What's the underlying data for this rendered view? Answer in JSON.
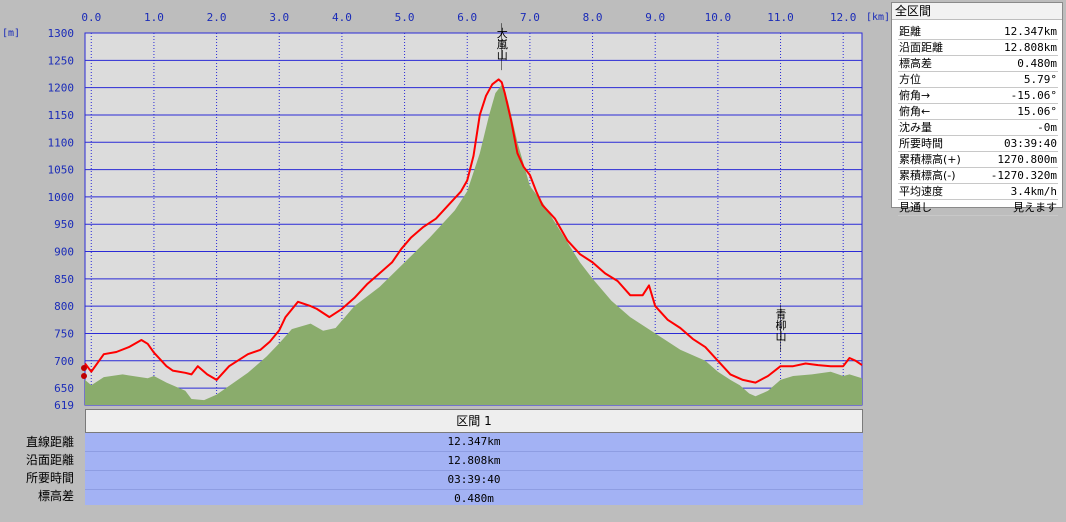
{
  "chart_data": {
    "type": "area",
    "x_unit": "[km]",
    "y_unit": "[m]",
    "x_ticks": [
      0.0,
      1.0,
      2.0,
      3.0,
      4.0,
      5.0,
      6.0,
      7.0,
      8.0,
      9.0,
      10.0,
      11.0,
      12.0
    ],
    "x_tick_labels": [
      "0.0",
      "1.0",
      "2.0",
      "3.0",
      "4.0",
      "5.0",
      "6.0",
      "7.0",
      "8.0",
      "9.0",
      "10.0",
      "11.0",
      "12.0"
    ],
    "y_ticks": [
      619,
      650,
      700,
      750,
      800,
      850,
      900,
      950,
      1000,
      1050,
      1100,
      1150,
      1200,
      1250,
      1300
    ],
    "y_tick_labels": [
      "619",
      "650",
      "700",
      "750",
      "800",
      "850",
      "900",
      "950",
      "1000",
      "1050",
      "1100",
      "1150",
      "1200",
      "1250",
      "1300"
    ],
    "xlim": [
      -0.1,
      12.3
    ],
    "ylim": [
      619,
      1300
    ],
    "grid": true,
    "series": [
      {
        "type": "line",
        "x": [
          -0.1,
          0.0,
          0.2,
          0.4,
          0.6,
          0.8,
          0.9,
          1.0,
          1.2,
          1.3,
          1.5,
          1.6,
          1.7,
          1.85,
          2.0,
          2.2,
          2.5,
          2.7,
          2.85,
          3.0,
          3.1,
          3.3,
          3.5,
          3.6,
          3.8,
          4.0,
          4.2,
          4.4,
          4.6,
          4.8,
          4.95,
          5.1,
          5.3,
          5.5,
          5.7,
          5.9,
          6.0,
          6.1,
          6.2,
          6.3,
          6.4,
          6.5,
          6.55,
          6.6,
          6.7,
          6.8,
          6.9,
          7.0,
          7.1,
          7.2,
          7.4,
          7.6,
          7.8,
          8.0,
          8.2,
          8.4,
          8.6,
          8.8,
          8.9,
          9.0,
          9.2,
          9.4,
          9.6,
          9.8,
          10.0,
          10.2,
          10.4,
          10.6,
          10.8,
          11.0,
          11.2,
          11.4,
          11.6,
          11.8,
          12.0,
          12.1,
          12.2,
          12.3
        ],
        "y": [
          695,
          680,
          712,
          716,
          725,
          738,
          731,
          715,
          690,
          682,
          678,
          675,
          690,
          675,
          665,
          690,
          712,
          720,
          735,
          756,
          780,
          808,
          800,
          795,
          780,
          795,
          815,
          840,
          860,
          880,
          905,
          925,
          945,
          960,
          985,
          1010,
          1030,
          1075,
          1150,
          1185,
          1206,
          1215,
          1210,
          1190,
          1140,
          1080,
          1055,
          1040,
          1010,
          985,
          960,
          920,
          895,
          880,
          860,
          846,
          820,
          820,
          838,
          800,
          775,
          760,
          740,
          725,
          700,
          675,
          665,
          660,
          672,
          690,
          690,
          695,
          692,
          690,
          690,
          705,
          700,
          692
        ]
      },
      {
        "type": "area",
        "x": [
          -0.1,
          0.0,
          0.2,
          0.5,
          0.9,
          1.0,
          1.2,
          1.5,
          1.6,
          1.8,
          2.0,
          2.5,
          2.8,
          3.0,
          3.2,
          3.5,
          3.7,
          3.9,
          4.2,
          4.6,
          5.0,
          5.4,
          5.8,
          6.0,
          6.2,
          6.35,
          6.45,
          6.55,
          6.65,
          6.8,
          7.0,
          7.2,
          7.5,
          7.8,
          8.0,
          8.3,
          8.6,
          9.0,
          9.4,
          9.8,
          10.0,
          10.2,
          10.35,
          10.5,
          10.6,
          10.8,
          11.0,
          11.2,
          11.5,
          11.8,
          12.0,
          12.1,
          12.3
        ],
        "y": [
          665,
          655,
          670,
          675,
          668,
          672,
          660,
          645,
          630,
          628,
          638,
          678,
          708,
          732,
          758,
          768,
          755,
          760,
          800,
          835,
          880,
          925,
          975,
          1010,
          1080,
          1150,
          1190,
          1205,
          1175,
          1100,
          1020,
          990,
          935,
          880,
          850,
          810,
          780,
          750,
          720,
          700,
          680,
          665,
          655,
          640,
          635,
          645,
          665,
          672,
          675,
          680,
          672,
          675,
          668
        ]
      }
    ],
    "annotations": [
      {
        "text": "大嵐山",
        "x": 6.55,
        "y": 1210
      },
      {
        "text": "青柳山",
        "x": 11.0,
        "y": 695
      }
    ]
  },
  "section": {
    "title": "区間 1",
    "rows": [
      {
        "label": "直線距離",
        "value": "12.347km"
      },
      {
        "label": "沿面距離",
        "value": "12.808km"
      },
      {
        "label": "所要時間",
        "value": "03:39:40"
      },
      {
        "label": "標高差",
        "value": "0.480m"
      }
    ]
  },
  "summary": {
    "title": "全区間",
    "rows": [
      {
        "label": "距離",
        "value": "12.347km"
      },
      {
        "label": "沿面距離",
        "value": "12.808km"
      },
      {
        "label": "標高差",
        "value": "0.480m"
      },
      {
        "label": "方位",
        "value": "5.79°"
      },
      {
        "label": "俯角→",
        "value": "-15.06°"
      },
      {
        "label": "俯角←",
        "value": "15.06°"
      },
      {
        "label": "沈み量",
        "value": "-0m"
      },
      {
        "label": "所要時間",
        "value": "03:39:40"
      },
      {
        "label": "累積標高(+)",
        "value": "1270.800m"
      },
      {
        "label": "累積標高(-)",
        "value": "-1270.320m"
      },
      {
        "label": "平均速度",
        "value": "3.4km/h"
      },
      {
        "label": "見通し",
        "value": "見えます"
      }
    ]
  },
  "colors": {
    "plot_bg": "#dcdcdc",
    "grid": "#2a2ad6",
    "profile_line": "#ff0000",
    "terrain_fill": "#8aac6c",
    "axis_text": "#1a2bb8",
    "stats_bg": "#a3b2f4"
  }
}
